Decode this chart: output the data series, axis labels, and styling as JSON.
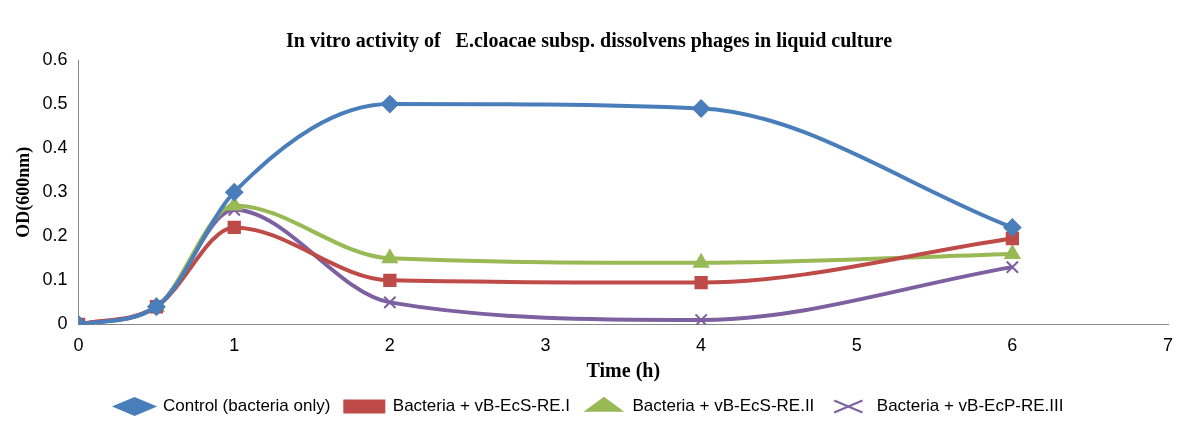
{
  "chart_data": {
    "type": "line",
    "title": "In vitro activity of   E.cloacae subsp. dissolvens phages in liquid culture",
    "xlabel": "Time (h)",
    "ylabel": "OD(600nm)",
    "x": [
      0,
      0.5,
      1,
      2,
      4,
      6
    ],
    "xlim": [
      0,
      7
    ],
    "xticks": [
      0,
      1,
      2,
      3,
      4,
      5,
      6,
      7
    ],
    "ylim": [
      0,
      0.6
    ],
    "yticks": [
      0,
      0.1,
      0.2,
      0.3,
      0.4,
      0.5,
      0.6
    ],
    "grid": false,
    "legend": "bottom",
    "series": [
      {
        "name": "Control (bacteria only)",
        "color": "#4a7ebb",
        "marker": "diamond",
        "values": [
          0,
          0.04,
          0.3,
          0.5,
          0.49,
          0.22
        ]
      },
      {
        "name": "Bacteria + vB-EcS-RE.I",
        "color": "#be4b48",
        "marker": "square",
        "values": [
          0,
          0.04,
          0.22,
          0.1,
          0.095,
          0.195
        ]
      },
      {
        "name": "Bacteria + vB-EcS-RE.II",
        "color": "#98b954",
        "marker": "triangle",
        "values": [
          0,
          0.04,
          0.27,
          0.15,
          0.14,
          0.16
        ]
      },
      {
        "name": "Bacteria + vB-EcP-RE.III",
        "color": "#7d60a0",
        "marker": "cross",
        "values": [
          0,
          0.04,
          0.26,
          0.05,
          0.01,
          0.13
        ]
      }
    ]
  }
}
